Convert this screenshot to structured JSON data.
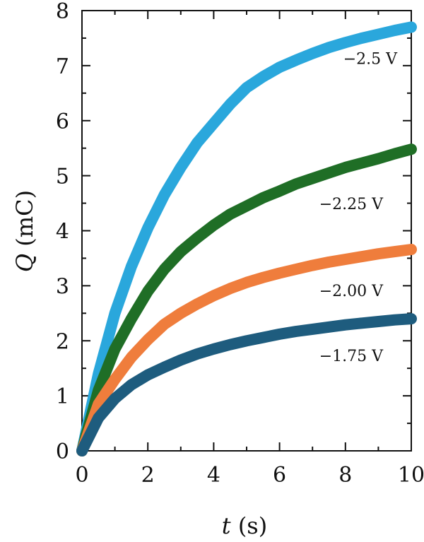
{
  "chart_data": {
    "type": "line",
    "xlabel": {
      "var": "t",
      "unit": "(s)"
    },
    "ylabel": {
      "var": "Q",
      "unit": "(mC)"
    },
    "xlim": [
      0,
      10
    ],
    "ylim": [
      0,
      8
    ],
    "x_ticks": [
      "0",
      "2",
      "4",
      "6",
      "8",
      "10"
    ],
    "y_ticks": [
      "0",
      "1",
      "2",
      "3",
      "4",
      "5",
      "6",
      "7",
      "8"
    ],
    "grid": false,
    "series": [
      {
        "name": "−2.5 V",
        "color": "#2aa7dc",
        "x": [
          0,
          0.5,
          1,
          1.5,
          2,
          2.5,
          3,
          3.5,
          4,
          4.5,
          5,
          5.5,
          6,
          6.5,
          7,
          7.5,
          8,
          8.5,
          9,
          9.5,
          10
        ],
        "values": [
          0,
          1.4,
          2.5,
          3.35,
          4.05,
          4.65,
          5.15,
          5.6,
          5.95,
          6.3,
          6.6,
          6.8,
          6.97,
          7.1,
          7.22,
          7.33,
          7.42,
          7.5,
          7.57,
          7.64,
          7.7
        ]
      },
      {
        "name": "−2.25 V",
        "color": "#1f6e26",
        "x": [
          0,
          0.5,
          1,
          1.5,
          2,
          2.5,
          3,
          3.5,
          4,
          4.5,
          5,
          5.5,
          6,
          6.5,
          7,
          7.5,
          8,
          8.5,
          9,
          9.5,
          10
        ],
        "values": [
          0,
          1.1,
          1.85,
          2.4,
          2.9,
          3.3,
          3.62,
          3.87,
          4.1,
          4.3,
          4.45,
          4.6,
          4.72,
          4.85,
          4.95,
          5.05,
          5.15,
          5.23,
          5.31,
          5.4,
          5.48
        ]
      },
      {
        "name": "−2.00 V",
        "color": "#ef7d3c",
        "x": [
          0,
          0.5,
          1,
          1.5,
          2,
          2.5,
          3,
          3.5,
          4,
          4.5,
          5,
          5.5,
          6,
          6.5,
          7,
          7.5,
          8,
          8.5,
          9,
          9.5,
          10
        ],
        "values": [
          0,
          0.85,
          1.3,
          1.7,
          2.02,
          2.3,
          2.5,
          2.67,
          2.82,
          2.95,
          3.06,
          3.15,
          3.23,
          3.3,
          3.37,
          3.43,
          3.48,
          3.53,
          3.58,
          3.62,
          3.66
        ]
      },
      {
        "name": "−1.75 V",
        "color": "#1e5c7e",
        "x": [
          0,
          0.5,
          1,
          1.5,
          2,
          2.5,
          3,
          3.5,
          4,
          4.5,
          5,
          5.5,
          6,
          6.5,
          7,
          7.5,
          8,
          8.5,
          9,
          9.5,
          10
        ],
        "values": [
          0,
          0.6,
          0.95,
          1.2,
          1.38,
          1.52,
          1.65,
          1.76,
          1.85,
          1.93,
          2.0,
          2.06,
          2.12,
          2.17,
          2.21,
          2.25,
          2.29,
          2.32,
          2.35,
          2.38,
          2.4
        ]
      }
    ]
  }
}
